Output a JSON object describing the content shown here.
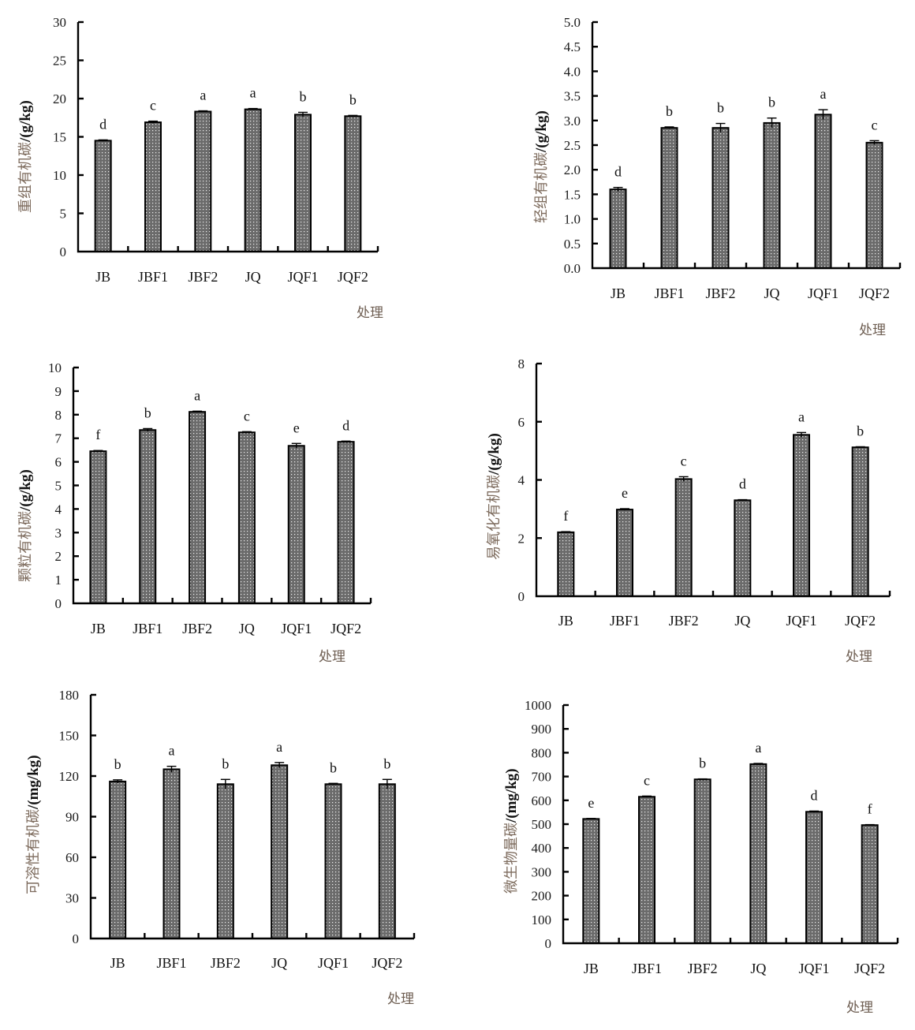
{
  "page": {
    "x_title": "处理",
    "categories": [
      "JB",
      "JBF1",
      "JBF2",
      "JQ",
      "JQF1",
      "JQF2"
    ],
    "bar_color": "#6b6b6b"
  },
  "chart_data": [
    {
      "type": "bar",
      "title": "",
      "ylabel_cn": "重组有机碳",
      "ylabel_unit": "/(g/kg)",
      "xlabel": "处理",
      "categories": [
        "JB",
        "JBF1",
        "JBF2",
        "JQ",
        "JQF1",
        "JQF2"
      ],
      "values": [
        14.5,
        16.9,
        18.3,
        18.6,
        17.9,
        17.7
      ],
      "errors": [
        0.1,
        0.15,
        0.1,
        0.1,
        0.3,
        0.1
      ],
      "significance": [
        "d",
        "c",
        "a",
        "a",
        "b",
        "b"
      ],
      "ylim": [
        0,
        30
      ],
      "yticks": [
        "0",
        "5",
        "10",
        "15",
        "20",
        "25",
        "30"
      ],
      "grid": false
    },
    {
      "type": "bar",
      "title": "",
      "ylabel_cn": "轻组有机碳",
      "ylabel_unit": "/(g/kg)",
      "xlabel": "处理",
      "categories": [
        "JB",
        "JBF1",
        "JBF2",
        "JQ",
        "JQF1",
        "JQF2"
      ],
      "values": [
        1.6,
        2.85,
        2.85,
        2.95,
        3.12,
        2.55
      ],
      "errors": [
        0.04,
        0.02,
        0.09,
        0.1,
        0.1,
        0.04
      ],
      "significance": [
        "d",
        "b",
        "b",
        "b",
        "a",
        "c"
      ],
      "ylim": [
        0,
        5
      ],
      "yticks": [
        "0.0",
        "0.5",
        "1.0",
        "1.5",
        "2.0",
        "2.5",
        "3.0",
        "3.5",
        "4.0",
        "4.5",
        "5.0"
      ],
      "grid": false
    },
    {
      "type": "bar",
      "title": "",
      "ylabel_cn": "颗粒有机碳",
      "ylabel_unit": "/(g/kg)",
      "xlabel": "处理",
      "categories": [
        "JB",
        "JBF1",
        "JBF2",
        "JQ",
        "JQF1",
        "JQF2"
      ],
      "values": [
        6.45,
        7.35,
        8.12,
        7.25,
        6.68,
        6.85
      ],
      "errors": [
        0.03,
        0.06,
        0.03,
        0.03,
        0.1,
        0.03
      ],
      "significance": [
        "f",
        "b",
        "a",
        "c",
        "e",
        "d"
      ],
      "ylim": [
        0,
        10
      ],
      "yticks": [
        "0",
        "1",
        "2",
        "3",
        "4",
        "5",
        "6",
        "7",
        "8",
        "9",
        "10"
      ],
      "grid": false
    },
    {
      "type": "bar",
      "title": "",
      "ylabel_cn": "易氧化有机碳",
      "ylabel_unit": "/(g/kg)",
      "xlabel": "处理",
      "categories": [
        "JB",
        "JBF1",
        "JBF2",
        "JQ",
        "JQF1",
        "JQF2"
      ],
      "values": [
        2.2,
        2.98,
        4.03,
        3.3,
        5.55,
        5.12
      ],
      "errors": [
        0.02,
        0.03,
        0.08,
        0.02,
        0.08,
        0.02
      ],
      "significance": [
        "f",
        "e",
        "c",
        "d",
        "a",
        "b"
      ],
      "ylim": [
        0,
        8
      ],
      "yticks": [
        "0",
        "2",
        "4",
        "6",
        "8"
      ],
      "grid": false
    },
    {
      "type": "bar",
      "title": "",
      "ylabel_cn": "可溶性有机碳",
      "ylabel_unit": "/(mg/kg)",
      "xlabel": "处理",
      "categories": [
        "JB",
        "JBF1",
        "JBF2",
        "JQ",
        "JQF1",
        "JQF2"
      ],
      "values": [
        116,
        125,
        114,
        128,
        114,
        114
      ],
      "errors": [
        1.2,
        2.2,
        3.5,
        2.0,
        0.6,
        3.5
      ],
      "significance": [
        "b",
        "a",
        "b",
        "a",
        "b",
        "b"
      ],
      "ylim": [
        0,
        180
      ],
      "yticks": [
        "0",
        "30",
        "60",
        "90",
        "120",
        "150",
        "180"
      ],
      "grid": false
    },
    {
      "type": "bar",
      "title": "",
      "ylabel_cn": "微生物量碳",
      "ylabel_unit": "/(mg/kg)",
      "xlabel": "处理",
      "categories": [
        "JB",
        "JBF1",
        "JBF2",
        "JQ",
        "JQF1",
        "JQF2"
      ],
      "values": [
        522,
        615,
        688,
        752,
        552,
        496
      ],
      "errors": [
        2,
        3,
        2,
        3,
        3,
        2
      ],
      "significance": [
        "e",
        "c",
        "b",
        "a",
        "d",
        "f"
      ],
      "ylim": [
        0,
        1000
      ],
      "yticks": [
        "0",
        "100",
        "200",
        "300",
        "400",
        "500",
        "600",
        "700",
        "800",
        "900",
        "1000"
      ],
      "grid": false
    }
  ]
}
